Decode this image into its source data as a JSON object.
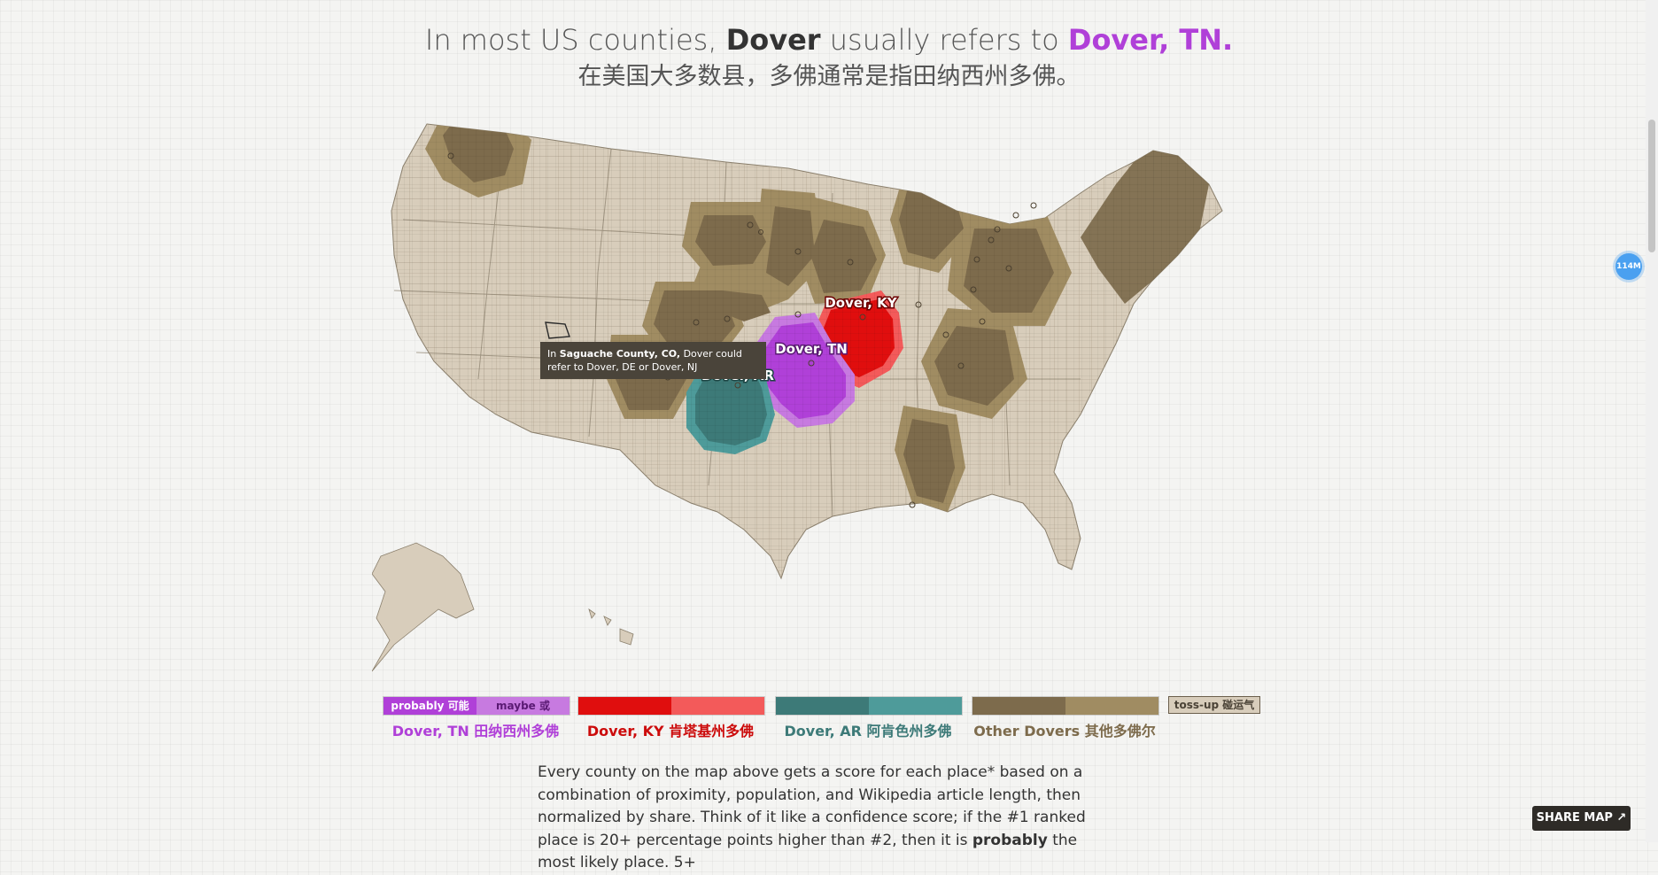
{
  "headline": {
    "pre": "In most US counties, ",
    "word": "Dover",
    "mid": " usually refers to ",
    "place": "Dover, TN.",
    "zh": "在美国大多数县，多佛通常是指田纳西州多佛。"
  },
  "tooltip": {
    "in": "In ",
    "county": "Saguache County, CO,",
    "rest": " Dover could refer to Dover, DE or Dover, NJ"
  },
  "map_labels": {
    "ky": "Dover, KY",
    "tn": "Dover, TN",
    "ar": "Dover, AR"
  },
  "legend": {
    "tn": {
      "probably": "probably 可能",
      "maybe": "maybe 或",
      "label": "Dover, TN 田纳西州多佛",
      "color": "#b040d8",
      "color2": "#c77ae0"
    },
    "ky": {
      "label": "Dover, KY 肯塔基州多佛",
      "color": "#e00e0e",
      "color2": "#f35a5a"
    },
    "ar": {
      "label": "Dover, AR 阿肯色州多佛",
      "color": "#3d7a78",
      "color2": "#4e9b9a"
    },
    "other": {
      "label": "Other Dovers 其他多佛尔",
      "color": "#7d6b4c",
      "color2": "#a08c62"
    },
    "tossup": "toss-up 碰运气"
  },
  "body": {
    "p1": "Every county on the map above gets a score for each place* based on a combination of proximity, population, and Wikipedia article length, then normalized by share. Think of it like a confidence score; if the #1 ranked place is 20+ percentage points higher than #2, then it is ",
    "bold": "probably",
    "p2": " the most likely place. 5+"
  },
  "ui": {
    "share": "SHARE MAP ↗",
    "badge": "114M"
  }
}
